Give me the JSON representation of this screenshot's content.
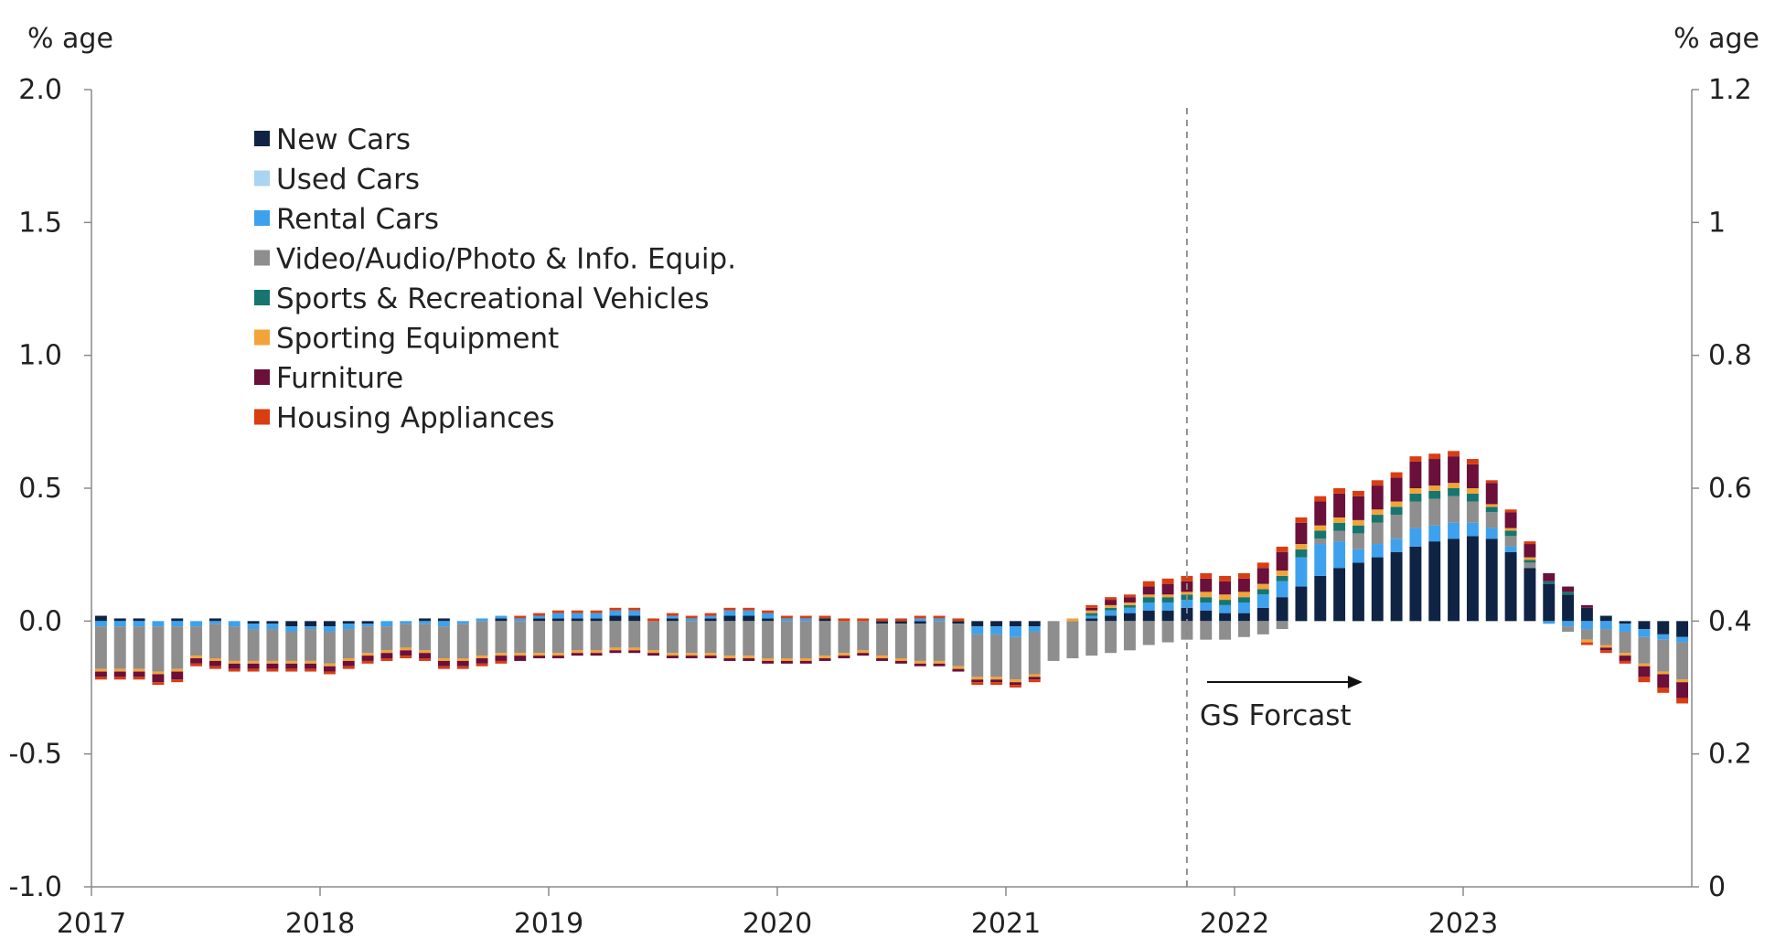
{
  "chart_data": {
    "type": "bar",
    "stacked": true,
    "left_axis": {
      "title": "% age",
      "ylim": [
        -1.0,
        2.0
      ],
      "ticks": [
        "2.0",
        "1.5",
        "1.0",
        "0.5",
        "0.0",
        "-0.5",
        "-1.0"
      ]
    },
    "right_axis": {
      "title": "% age",
      "ylim": [
        0,
        1.2
      ],
      "ticks": [
        "1.2",
        "1",
        "0.8",
        "0.6",
        "0.4",
        "0.2",
        "0"
      ]
    },
    "x_ticks": [
      "2017",
      "2018",
      "2019",
      "2020",
      "2021",
      "2022",
      "2023"
    ],
    "x_start": "2017-01",
    "periods": 84,
    "legend_position": "top-left",
    "annotation": {
      "text": "GS Forcast",
      "at": "2021-10"
    },
    "series": [
      {
        "name": "New Cars",
        "color": "#0f2444",
        "values": [
          0.02,
          0.01,
          0.01,
          0.0,
          0.01,
          0.0,
          0.01,
          0.0,
          -0.01,
          -0.01,
          -0.02,
          -0.02,
          -0.02,
          -0.01,
          -0.01,
          0.0,
          0.0,
          0.01,
          0.01,
          0.0,
          0.0,
          0.01,
          0.0,
          0.01,
          0.01,
          0.01,
          0.01,
          0.02,
          0.02,
          0.0,
          0.01,
          0.0,
          0.01,
          0.02,
          0.02,
          0.01,
          0.0,
          0.0,
          0.01,
          0.0,
          0.0,
          -0.01,
          -0.01,
          -0.01,
          0.0,
          -0.01,
          -0.02,
          -0.02,
          -0.02,
          -0.02,
          0.0,
          0.0,
          0.01,
          0.02,
          0.03,
          0.04,
          0.04,
          0.05,
          0.04,
          0.03,
          0.03,
          0.05,
          0.09,
          0.13,
          0.17,
          0.2,
          0.22,
          0.24,
          0.26,
          0.28,
          0.3,
          0.31,
          0.32,
          0.31,
          0.26,
          0.2,
          0.14,
          0.1,
          0.05,
          0.02,
          -0.01,
          -0.03,
          -0.05,
          -0.06
        ]
      },
      {
        "name": "Used Cars",
        "color": "#a9d4f2",
        "values": [
          0.0,
          0.0,
          0.0,
          0.0,
          0.0,
          0.0,
          0.0,
          0.0,
          0.0,
          0.0,
          0.0,
          0.0,
          0.0,
          0.0,
          0.0,
          0.0,
          0.0,
          0.0,
          0.0,
          0.0,
          0.0,
          0.0,
          0.0,
          0.0,
          0.0,
          0.0,
          0.0,
          0.0,
          0.0,
          0.0,
          0.0,
          0.0,
          0.0,
          0.0,
          0.0,
          0.0,
          0.0,
          0.0,
          0.0,
          0.0,
          0.0,
          0.0,
          0.0,
          0.0,
          0.0,
          0.0,
          0.0,
          0.0,
          0.0,
          0.0,
          0.0,
          0.0,
          0.0,
          0.0,
          0.0,
          0.0,
          0.0,
          0.0,
          0.0,
          0.0,
          0.0,
          0.0,
          0.0,
          0.0,
          0.0,
          0.0,
          0.0,
          0.0,
          0.0,
          0.0,
          0.0,
          0.0,
          0.0,
          0.0,
          0.0,
          0.0,
          0.0,
          0.0,
          0.0,
          0.0,
          0.0,
          0.0,
          0.0,
          0.0
        ]
      },
      {
        "name": "Rental Cars",
        "color": "#3da1ee",
        "values": [
          -0.02,
          -0.02,
          -0.02,
          -0.02,
          -0.02,
          -0.02,
          -0.01,
          -0.02,
          -0.02,
          -0.02,
          -0.02,
          -0.01,
          -0.02,
          -0.02,
          -0.01,
          -0.02,
          -0.01,
          -0.01,
          -0.02,
          -0.01,
          0.01,
          0.01,
          0.01,
          0.01,
          0.02,
          0.02,
          0.02,
          0.02,
          0.02,
          0.0,
          0.01,
          0.01,
          0.01,
          0.02,
          0.02,
          0.02,
          0.01,
          0.01,
          0.0,
          0.0,
          0.0,
          0.0,
          0.0,
          0.01,
          0.01,
          0.0,
          -0.03,
          -0.03,
          -0.04,
          -0.02,
          0.0,
          0.0,
          0.01,
          0.02,
          0.02,
          0.03,
          0.03,
          0.03,
          0.03,
          0.03,
          0.04,
          0.05,
          0.06,
          0.11,
          0.12,
          0.1,
          0.05,
          0.05,
          0.05,
          0.07,
          0.06,
          0.06,
          0.05,
          0.04,
          0.02,
          0.0,
          -0.01,
          -0.02,
          -0.03,
          -0.03,
          -0.03,
          -0.03,
          -0.02,
          -0.02
        ]
      },
      {
        "name": "Video/Audio/Photo & Info. Equip.",
        "color": "#8e8e8e",
        "values": [
          -0.16,
          -0.16,
          -0.16,
          -0.17,
          -0.16,
          -0.11,
          -0.13,
          -0.13,
          -0.12,
          -0.12,
          -0.11,
          -0.12,
          -0.12,
          -0.11,
          -0.1,
          -0.09,
          -0.09,
          -0.1,
          -0.12,
          -0.13,
          -0.13,
          -0.12,
          -0.12,
          -0.12,
          -0.12,
          -0.11,
          -0.11,
          -0.1,
          -0.1,
          -0.11,
          -0.12,
          -0.12,
          -0.12,
          -0.13,
          -0.13,
          -0.14,
          -0.14,
          -0.14,
          -0.13,
          -0.12,
          -0.11,
          -0.12,
          -0.13,
          -0.14,
          -0.15,
          -0.16,
          -0.16,
          -0.16,
          -0.16,
          -0.16,
          -0.15,
          -0.14,
          -0.13,
          -0.12,
          -0.11,
          -0.09,
          -0.08,
          -0.07,
          -0.07,
          -0.07,
          -0.06,
          -0.05,
          -0.03,
          0.0,
          0.02,
          0.04,
          0.06,
          0.08,
          0.09,
          0.1,
          0.1,
          0.1,
          0.08,
          0.06,
          0.04,
          0.02,
          0.0,
          -0.02,
          -0.04,
          -0.06,
          -0.08,
          -0.1,
          -0.12,
          -0.14
        ]
      },
      {
        "name": "Sports & Recreational Vehicles",
        "color": "#16766f",
        "values": [
          0.0,
          0.0,
          0.0,
          0.0,
          0.0,
          0.0,
          0.0,
          0.0,
          0.0,
          0.0,
          0.0,
          0.0,
          0.0,
          0.0,
          0.0,
          0.0,
          0.0,
          0.0,
          0.0,
          0.0,
          0.0,
          0.0,
          0.0,
          0.0,
          0.0,
          0.0,
          0.0,
          0.0,
          0.0,
          0.0,
          0.0,
          0.0,
          0.0,
          0.0,
          0.0,
          0.0,
          0.0,
          0.0,
          0.0,
          0.0,
          0.0,
          0.0,
          0.0,
          0.0,
          0.0,
          0.0,
          0.0,
          0.0,
          0.0,
          0.0,
          0.0,
          0.0,
          0.01,
          0.01,
          0.01,
          0.02,
          0.02,
          0.02,
          0.02,
          0.02,
          0.02,
          0.02,
          0.02,
          0.03,
          0.03,
          0.03,
          0.03,
          0.03,
          0.03,
          0.03,
          0.03,
          0.03,
          0.03,
          0.02,
          0.02,
          0.01,
          0.01,
          0.01,
          0.0,
          0.0,
          0.0,
          0.0,
          0.0,
          0.0
        ]
      },
      {
        "name": "Sporting Equipment",
        "color": "#f2a43a",
        "values": [
          -0.01,
          -0.01,
          -0.01,
          -0.01,
          -0.01,
          -0.01,
          -0.01,
          -0.01,
          -0.01,
          -0.01,
          -0.01,
          -0.01,
          -0.01,
          -0.01,
          -0.01,
          -0.01,
          -0.01,
          -0.01,
          -0.01,
          -0.01,
          -0.01,
          -0.01,
          -0.01,
          -0.01,
          -0.01,
          -0.01,
          -0.01,
          -0.01,
          -0.01,
          -0.01,
          -0.01,
          -0.01,
          -0.01,
          -0.01,
          -0.01,
          -0.01,
          -0.01,
          -0.01,
          -0.01,
          -0.01,
          -0.01,
          -0.01,
          -0.01,
          -0.01,
          -0.01,
          -0.01,
          -0.01,
          -0.01,
          -0.01,
          -0.01,
          0.0,
          0.01,
          0.01,
          0.01,
          0.01,
          0.01,
          0.01,
          0.01,
          0.02,
          0.02,
          0.02,
          0.02,
          0.02,
          0.02,
          0.02,
          0.02,
          0.02,
          0.02,
          0.02,
          0.02,
          0.02,
          0.02,
          0.02,
          0.01,
          0.01,
          0.01,
          0.0,
          0.0,
          -0.01,
          -0.01,
          -0.01,
          -0.01,
          -0.01,
          -0.01
        ]
      },
      {
        "name": "Furniture",
        "color": "#6b0f3b",
        "values": [
          -0.02,
          -0.02,
          -0.02,
          -0.03,
          -0.03,
          -0.02,
          -0.02,
          -0.02,
          -0.02,
          -0.02,
          -0.02,
          -0.02,
          -0.02,
          -0.02,
          -0.02,
          -0.02,
          -0.02,
          -0.02,
          -0.02,
          -0.02,
          -0.02,
          -0.02,
          -0.02,
          -0.01,
          -0.01,
          -0.01,
          -0.01,
          -0.01,
          -0.01,
          -0.01,
          -0.01,
          -0.01,
          -0.01,
          -0.01,
          -0.01,
          -0.01,
          -0.01,
          -0.01,
          -0.01,
          -0.01,
          -0.01,
          -0.01,
          -0.01,
          -0.01,
          -0.01,
          -0.01,
          -0.01,
          -0.01,
          -0.01,
          -0.01,
          0.0,
          0.0,
          0.01,
          0.02,
          0.02,
          0.03,
          0.04,
          0.04,
          0.05,
          0.05,
          0.05,
          0.06,
          0.07,
          0.08,
          0.09,
          0.09,
          0.09,
          0.09,
          0.09,
          0.1,
          0.1,
          0.1,
          0.09,
          0.08,
          0.06,
          0.05,
          0.03,
          0.02,
          0.01,
          -0.01,
          -0.02,
          -0.04,
          -0.05,
          -0.06
        ]
      },
      {
        "name": "Housing Appliances",
        "color": "#d93d12",
        "values": [
          -0.01,
          -0.01,
          -0.01,
          -0.01,
          -0.01,
          -0.01,
          -0.01,
          -0.01,
          -0.01,
          -0.01,
          -0.01,
          -0.01,
          -0.01,
          -0.01,
          -0.01,
          -0.01,
          -0.01,
          -0.01,
          -0.01,
          -0.01,
          -0.01,
          -0.01,
          0.01,
          0.01,
          0.01,
          0.01,
          0.01,
          0.01,
          0.01,
          0.01,
          0.01,
          0.01,
          0.01,
          0.01,
          0.01,
          0.01,
          0.01,
          0.01,
          0.01,
          0.01,
          0.01,
          0.01,
          0.01,
          0.01,
          0.01,
          0.01,
          -0.01,
          -0.01,
          -0.01,
          -0.01,
          0.0,
          0.0,
          0.01,
          0.01,
          0.01,
          0.02,
          0.02,
          0.02,
          0.02,
          0.02,
          0.02,
          0.02,
          0.02,
          0.02,
          0.02,
          0.02,
          0.02,
          0.02,
          0.02,
          0.02,
          0.02,
          0.02,
          0.02,
          0.01,
          0.01,
          0.01,
          0.0,
          0.0,
          -0.01,
          -0.01,
          -0.01,
          -0.02,
          -0.02,
          -0.02
        ]
      }
    ]
  }
}
